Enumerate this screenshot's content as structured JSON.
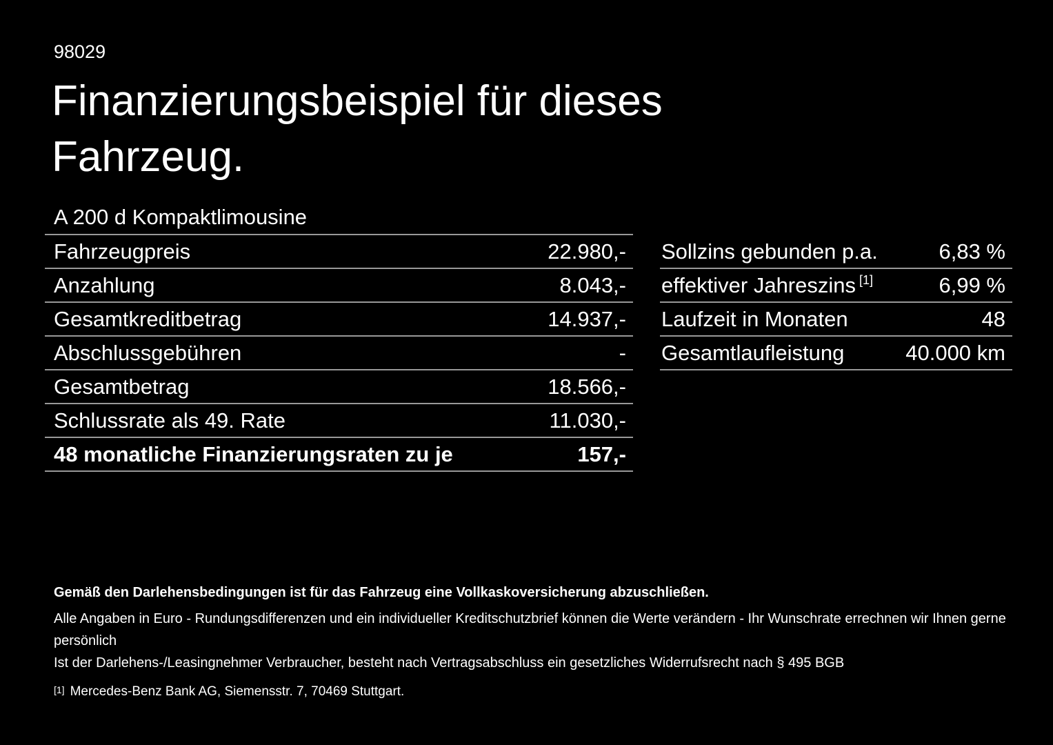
{
  "page": {
    "doc_number": "98029",
    "title": "Finanzierungsbeispiel für dieses Fahrzeug.",
    "model": "A 200 d Kompaktlimousine"
  },
  "finance_table": {
    "rows": [
      {
        "label": "Fahrzeugpreis",
        "value": "22.980,-"
      },
      {
        "label": "Anzahlung",
        "value": "8.043,-"
      },
      {
        "label": "Gesamtkreditbetrag",
        "value": "14.937,-"
      },
      {
        "label": "Abschlussgebühren",
        "value": "-"
      },
      {
        "label": "Gesamtbetrag",
        "value": "18.566,-"
      },
      {
        "label": "Schlussrate als 49. Rate",
        "value": "11.030,-"
      },
      {
        "label": "48 monatliche Finanzierungsraten zu je",
        "value": "157,-"
      }
    ]
  },
  "conditions_table": {
    "rows": [
      {
        "label": "Sollzins gebunden p.a.",
        "value": "6,83 %"
      },
      {
        "label": "effektiver Jahreszins",
        "superscript": "[1]",
        "value": "6,99 %"
      },
      {
        "label": "Laufzeit in Monaten",
        "value": "48"
      },
      {
        "label": "Gesamtlaufleistung",
        "value": "40.000 km"
      }
    ]
  },
  "footer": {
    "bold_note": "Gemäß den Darlehensbedingungen ist für das Fahrzeug eine Vollkaskoversicherung abzuschließen.",
    "note_line1": "Alle Angaben in Euro - Rundungsdifferenzen und ein individueller Kreditschutzbrief können die Werte verändern - Ihr Wunschrate errechnen wir Ihnen gerne persönlich",
    "note_line2": "Ist der Darlehens-/Leasingnehmer Verbraucher, besteht nach Vertragsabschluss ein gesetzliches Widerrufsrecht nach § 495 BGB",
    "footnote_marker": "[1]",
    "footnote_text": "Mercedes-Benz Bank AG, Siemensstr. 7, 70469 Stuttgart."
  },
  "colors": {
    "background": "#000000",
    "text": "#ffffff",
    "divider": "#999999"
  }
}
